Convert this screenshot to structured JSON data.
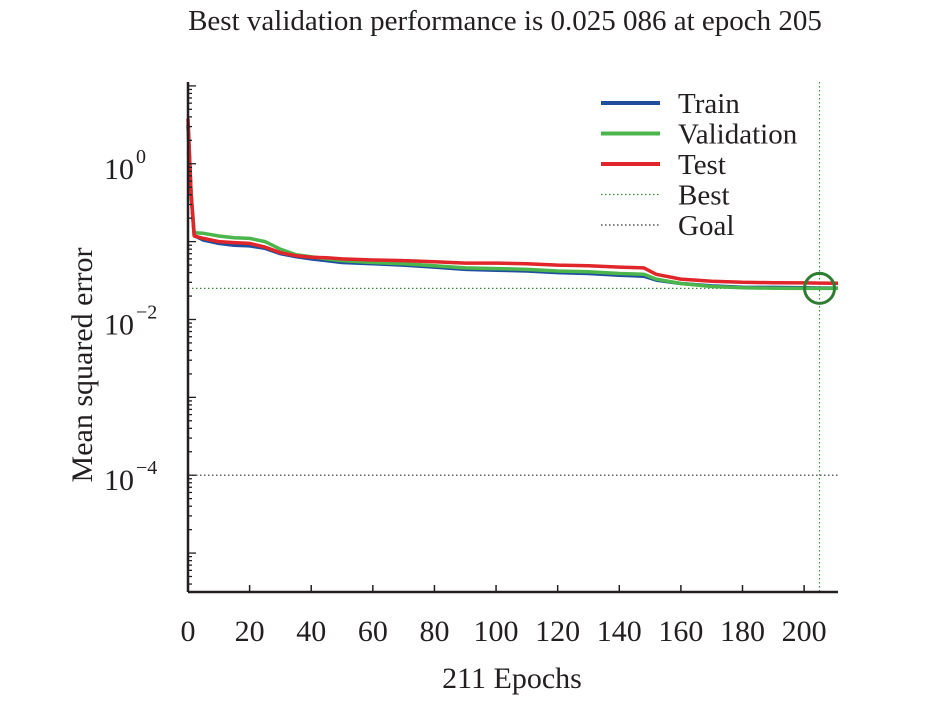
{
  "chart_data": {
    "type": "line",
    "title": "Best validation performance is 0.025 086 at epoch 205",
    "xlabel": "211 Epochs",
    "ylabel": "Mean squared error",
    "y_scale": "log",
    "xlim": [
      0,
      211
    ],
    "ylim_log10": [
      -5.5,
      1.05
    ],
    "x_ticks": [
      0,
      20,
      40,
      60,
      80,
      100,
      120,
      140,
      160,
      180,
      200
    ],
    "y_ticks": [
      {
        "exp": 0,
        "base": "10",
        "sup": "0"
      },
      {
        "exp": -2,
        "base": "10",
        "sup": "−2"
      },
      {
        "exp": -4,
        "base": "10",
        "sup": "−4"
      }
    ],
    "best": {
      "epoch": 205,
      "value": 0.025086
    },
    "goal": 0.0001,
    "legend_position": "top-right",
    "colors": {
      "train": "#1f4e9e",
      "validation": "#4cb64c",
      "test": "#e0262b",
      "best_line": "#3a8a3a",
      "goal_line": "#333333",
      "marker": "#2e7d32",
      "axis": "#231f20"
    },
    "series": [
      {
        "name": "Train",
        "color": "#1f4e9e",
        "x": [
          0,
          1,
          2,
          5,
          10,
          15,
          20,
          25,
          30,
          35,
          40,
          45,
          50,
          60,
          70,
          80,
          90,
          100,
          110,
          120,
          130,
          140,
          148,
          152,
          160,
          170,
          180,
          190,
          200,
          205,
          211
        ],
        "y": [
          3.2,
          0.4,
          0.12,
          0.105,
          0.095,
          0.09,
          0.088,
          0.082,
          0.07,
          0.064,
          0.06,
          0.057,
          0.054,
          0.052,
          0.05,
          0.047,
          0.044,
          0.043,
          0.042,
          0.04,
          0.039,
          0.037,
          0.036,
          0.032,
          0.029,
          0.027,
          0.026,
          0.0258,
          0.0255,
          0.0254,
          0.0253
        ]
      },
      {
        "name": "Validation",
        "color": "#4cb64c",
        "x": [
          0,
          1,
          2,
          5,
          10,
          15,
          20,
          25,
          30,
          35,
          40,
          45,
          50,
          60,
          70,
          80,
          90,
          100,
          110,
          120,
          130,
          140,
          148,
          152,
          160,
          170,
          180,
          190,
          200,
          205,
          211
        ],
        "y": [
          3.0,
          0.4,
          0.13,
          0.128,
          0.118,
          0.112,
          0.11,
          0.1,
          0.08,
          0.068,
          0.064,
          0.06,
          0.057,
          0.054,
          0.052,
          0.049,
          0.046,
          0.045,
          0.044,
          0.042,
          0.041,
          0.039,
          0.038,
          0.033,
          0.029,
          0.0265,
          0.0255,
          0.0252,
          0.0251,
          0.025086,
          0.0251
        ]
      },
      {
        "name": "Test",
        "color": "#e0262b",
        "x": [
          0,
          1,
          2,
          5,
          10,
          15,
          20,
          25,
          30,
          35,
          40,
          45,
          50,
          60,
          70,
          80,
          90,
          100,
          110,
          120,
          130,
          140,
          148,
          152,
          160,
          170,
          180,
          190,
          200,
          205,
          211
        ],
        "y": [
          3.8,
          0.42,
          0.118,
          0.11,
          0.1,
          0.097,
          0.095,
          0.085,
          0.072,
          0.066,
          0.063,
          0.062,
          0.06,
          0.058,
          0.057,
          0.055,
          0.053,
          0.053,
          0.052,
          0.05,
          0.049,
          0.047,
          0.046,
          0.038,
          0.033,
          0.031,
          0.03,
          0.0297,
          0.0295,
          0.0293,
          0.0292
        ]
      }
    ],
    "legend": [
      {
        "label": "Train",
        "kind": "train"
      },
      {
        "label": "Validation",
        "kind": "validation"
      },
      {
        "label": "Test",
        "kind": "test"
      },
      {
        "label": "Best",
        "kind": "best"
      },
      {
        "label": "Goal",
        "kind": "goal"
      }
    ]
  }
}
